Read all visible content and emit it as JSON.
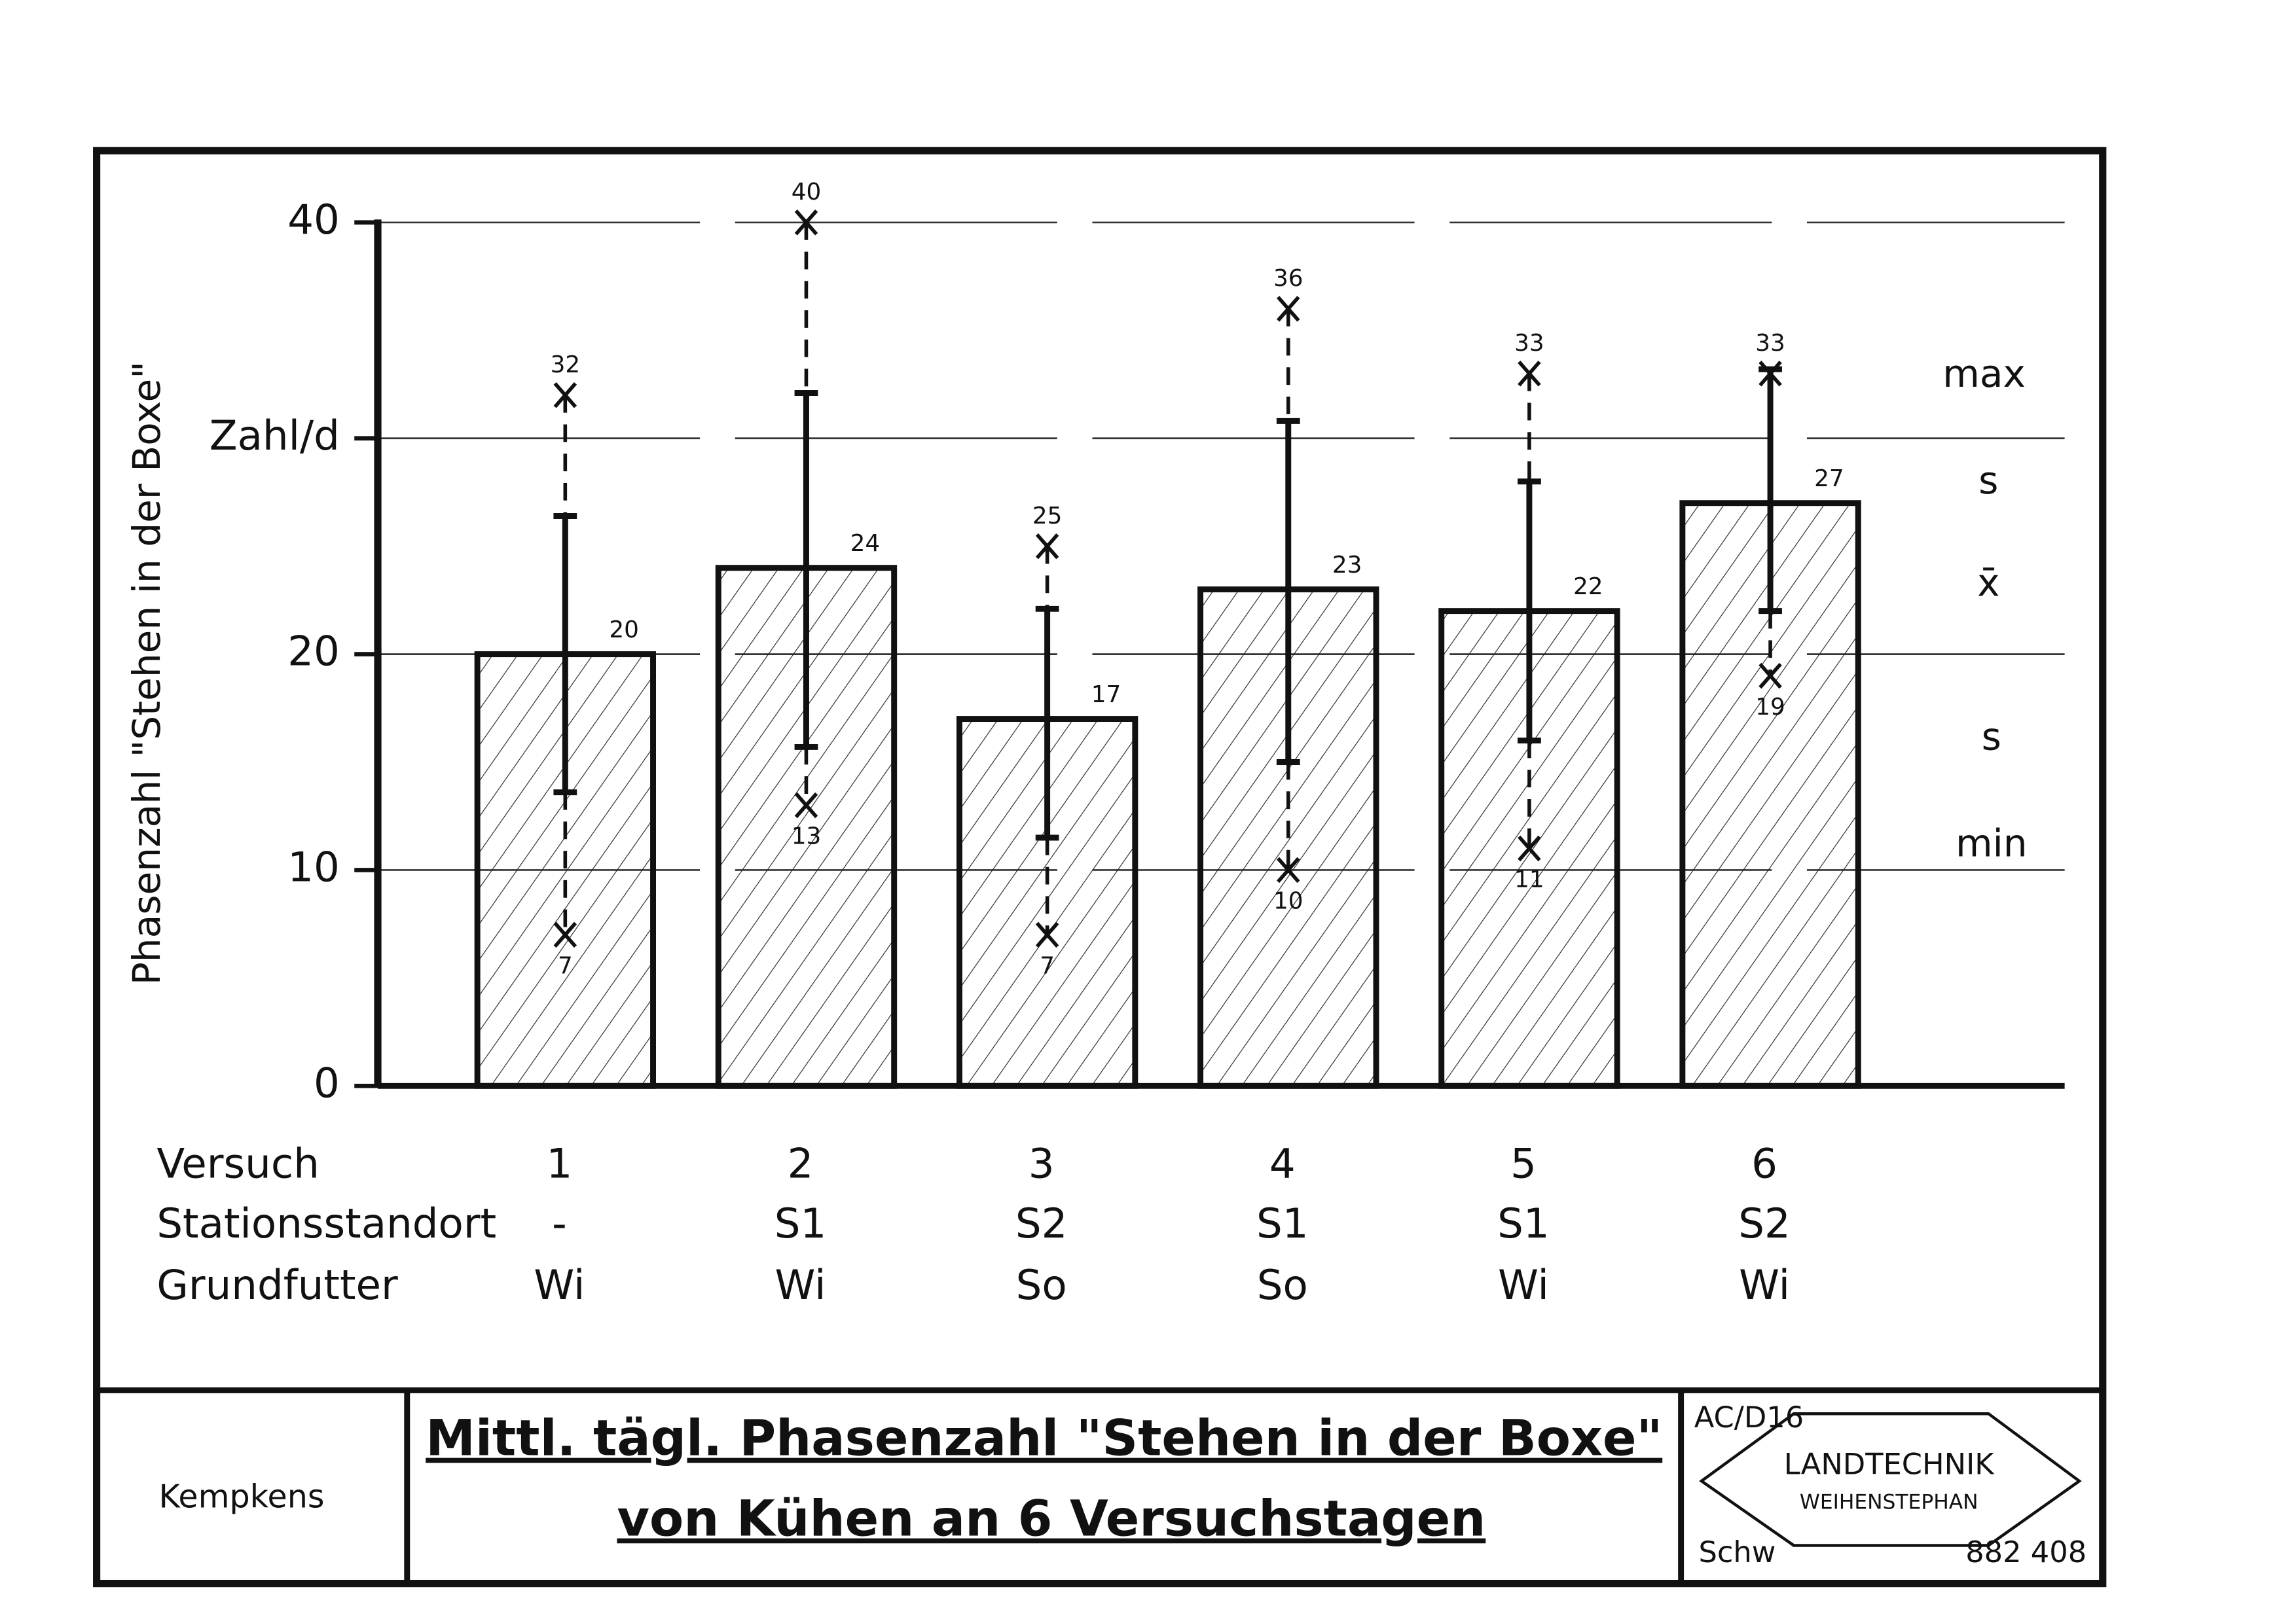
{
  "chart_data": {
    "type": "bar",
    "title": [
      "Mittl. tägl. Phasenzahl \"Stehen in der Boxe\"",
      "von Kühen an 6 Versuchstagen"
    ],
    "y_label": "Phasenzahl \"Stehen in der Boxe\"",
    "row_labels": [
      "Versuch",
      "Stationsstandort",
      "Grundfutter"
    ],
    "categories": [
      "1",
      "2",
      "3",
      "4",
      "5",
      "6"
    ],
    "stations": [
      "-",
      "S1",
      "S2",
      "S1",
      "S1",
      "S2"
    ],
    "feed": [
      "Wi",
      "Wi",
      "So",
      "So",
      "Wi",
      "Wi"
    ],
    "series": [
      {
        "name": "max",
        "values": [
          32,
          40,
          25,
          36,
          33,
          33
        ]
      },
      {
        "name": "s",
        "values": [
          26.4,
          32.1,
          22.1,
          30.8,
          28.0,
          33.2
        ]
      },
      {
        "name": "x̄",
        "values": [
          20,
          24,
          17,
          23,
          22,
          27
        ]
      },
      {
        "name": "s",
        "values": [
          13.6,
          15.7,
          11.5,
          15.0,
          16.0,
          22.0
        ]
      },
      {
        "name": "min",
        "values": [
          7,
          13,
          7,
          10,
          11,
          19
        ]
      }
    ],
    "color": "#111111",
    "ylim": [
      0,
      40
    ],
    "yticks": [
      0,
      10,
      20,
      {
        "value": 30,
        "label": "Zahl/d"
      },
      40
    ],
    "grid": true
  },
  "footer": {
    "author": "Kempkens",
    "code": "AC/D16",
    "logo_top": "LANDTECHNIK",
    "logo_bottom": "WEIHENSTEPHAN",
    "drawer": "Schw",
    "number": "882 408"
  }
}
